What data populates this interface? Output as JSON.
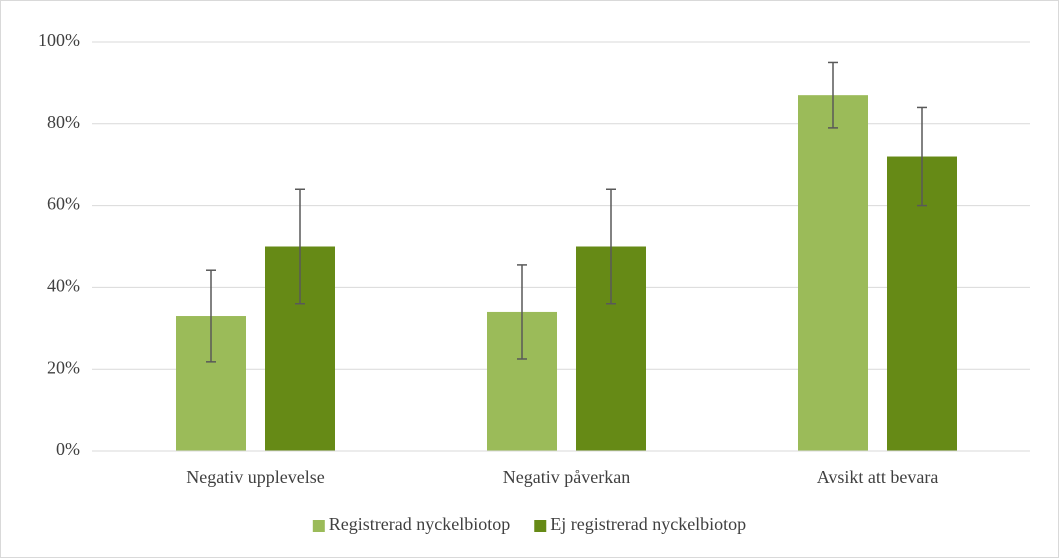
{
  "chart_data": {
    "type": "bar",
    "categories": [
      "Negativ upplevelse",
      "Negativ påverkan",
      "Avsikt att bevara"
    ],
    "series": [
      {
        "name": "Registrerad nyckelbiotop",
        "color": "#9bbb59",
        "values": [
          33,
          34,
          87
        ],
        "errors": [
          11.2,
          11.5,
          8
        ]
      },
      {
        "name": "Ej registrerad nyckelbiotop",
        "color": "#668a16",
        "values": [
          50,
          50,
          72
        ],
        "errors": [
          14,
          14,
          12
        ]
      }
    ],
    "ylim": [
      0,
      100
    ],
    "yticks": [
      {
        "value": 0,
        "label": "0%"
      },
      {
        "value": 20,
        "label": "20%"
      },
      {
        "value": 40,
        "label": "40%"
      },
      {
        "value": 60,
        "label": "60%"
      },
      {
        "value": 80,
        "label": "80%"
      },
      {
        "value": 100,
        "label": "100%"
      }
    ],
    "grid": true,
    "legend": "bottom"
  }
}
